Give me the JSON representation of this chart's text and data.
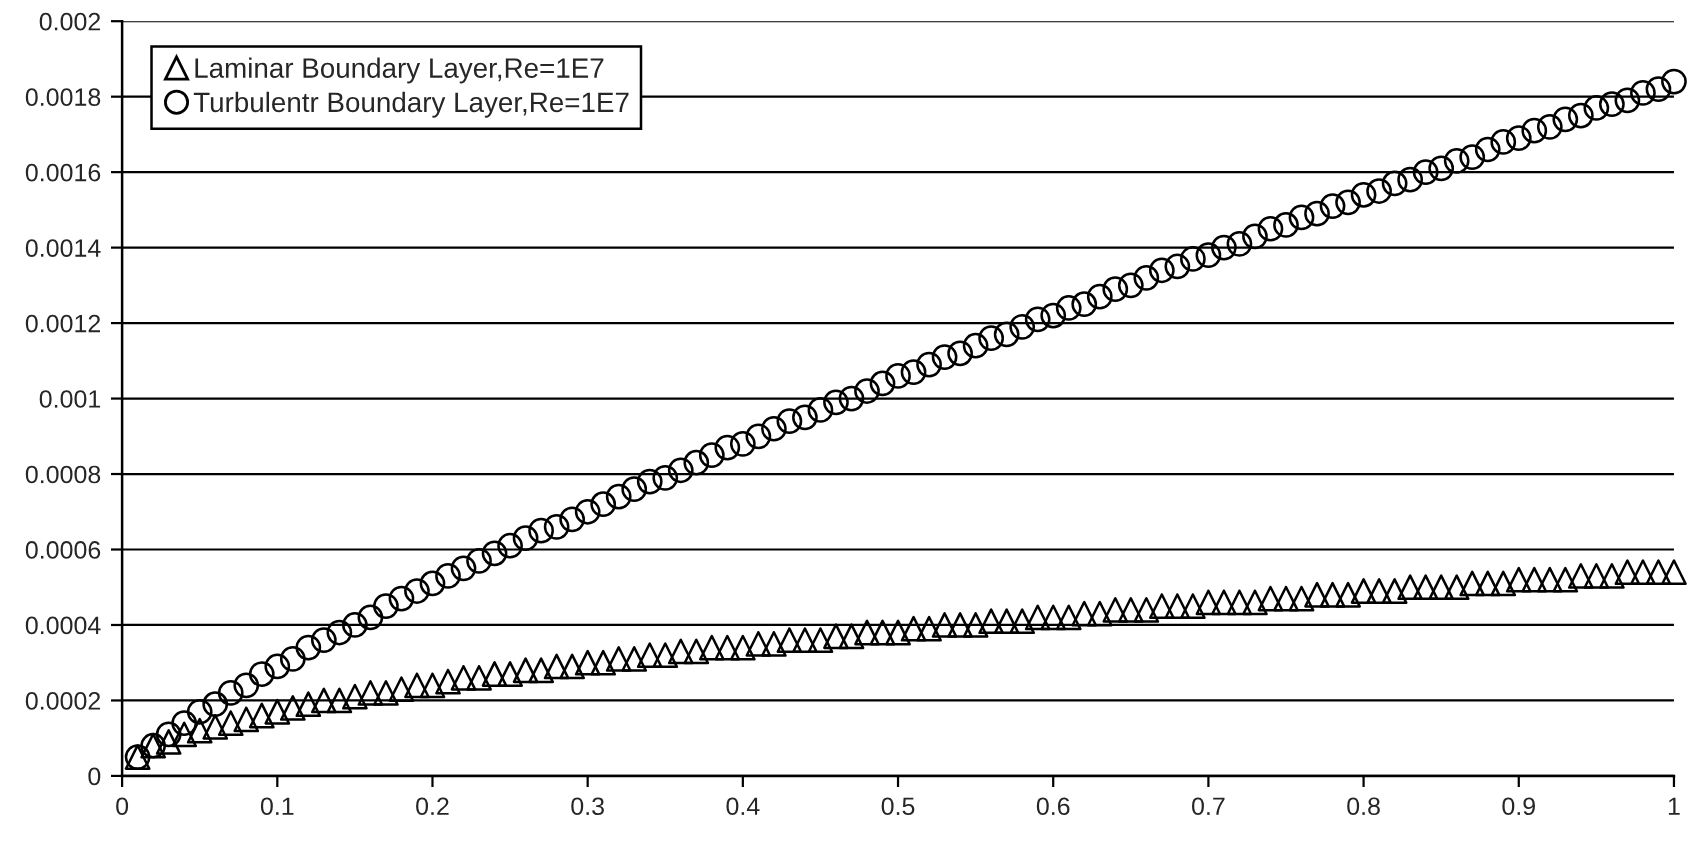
{
  "chart_data": {
    "type": "scatter",
    "x": [
      0.01,
      0.02,
      0.03,
      0.04,
      0.05,
      0.06,
      0.07,
      0.08,
      0.09,
      0.1,
      0.11,
      0.12,
      0.13,
      0.14,
      0.15,
      0.16,
      0.17,
      0.18,
      0.19,
      0.2,
      0.21,
      0.22,
      0.23,
      0.24,
      0.25,
      0.26,
      0.27,
      0.28,
      0.29,
      0.3,
      0.31,
      0.32,
      0.33,
      0.34,
      0.35,
      0.36,
      0.37,
      0.38,
      0.39,
      0.4,
      0.41,
      0.42,
      0.43,
      0.44,
      0.45,
      0.46,
      0.47,
      0.48,
      0.49,
      0.5,
      0.51,
      0.52,
      0.53,
      0.54,
      0.55,
      0.56,
      0.57,
      0.58,
      0.59,
      0.6,
      0.61,
      0.62,
      0.63,
      0.64,
      0.65,
      0.66,
      0.67,
      0.68,
      0.69,
      0.7,
      0.71,
      0.72,
      0.73,
      0.74,
      0.75,
      0.76,
      0.77,
      0.78,
      0.79,
      0.8,
      0.81,
      0.82,
      0.83,
      0.84,
      0.85,
      0.86,
      0.87,
      0.88,
      0.89,
      0.9,
      0.91,
      0.92,
      0.93,
      0.94,
      0.95,
      0.96,
      0.97,
      0.98,
      0.99,
      1.0
    ],
    "series": [
      {
        "name": "Laminar Boundary Layer,Re=1E7",
        "color": "#000000",
        "marker": "triangle",
        "values": [
          5e-05,
          8e-05,
          9e-05,
          0.00011,
          0.00012,
          0.00013,
          0.00014,
          0.00015,
          0.00016,
          0.00017,
          0.00018,
          0.00019,
          0.0002,
          0.0002,
          0.00021,
          0.00022,
          0.00022,
          0.00023,
          0.00024,
          0.00024,
          0.00025,
          0.00026,
          0.00026,
          0.00027,
          0.00027,
          0.00028,
          0.00028,
          0.00029,
          0.00029,
          0.0003,
          0.0003,
          0.00031,
          0.00031,
          0.00032,
          0.00032,
          0.00033,
          0.00033,
          0.00034,
          0.00034,
          0.00034,
          0.00035,
          0.00035,
          0.00036,
          0.00036,
          0.00036,
          0.00037,
          0.00037,
          0.00038,
          0.00038,
          0.00038,
          0.00039,
          0.00039,
          0.0004,
          0.0004,
          0.0004,
          0.00041,
          0.00041,
          0.00041,
          0.00042,
          0.00042,
          0.00042,
          0.00043,
          0.00043,
          0.00044,
          0.00044,
          0.00044,
          0.00045,
          0.00045,
          0.00045,
          0.00046,
          0.00046,
          0.00046,
          0.00046,
          0.00047,
          0.00047,
          0.00047,
          0.00048,
          0.00048,
          0.00048,
          0.00049,
          0.00049,
          0.00049,
          0.0005,
          0.0005,
          0.0005,
          0.0005,
          0.00051,
          0.00051,
          0.00051,
          0.00052,
          0.00052,
          0.00052,
          0.00052,
          0.00053,
          0.00053,
          0.00053,
          0.00054,
          0.00054,
          0.00054,
          0.00054
        ]
      },
      {
        "name": "Turbulentr Boundary Layer,Re=1E7",
        "color": "#000000",
        "marker": "circle",
        "values": [
          5e-05,
          8e-05,
          0.00011,
          0.00014,
          0.00017,
          0.00019,
          0.00022,
          0.00024,
          0.00027,
          0.00029,
          0.00031,
          0.00034,
          0.00036,
          0.00038,
          0.0004,
          0.00042,
          0.00045,
          0.00047,
          0.00049,
          0.00051,
          0.00053,
          0.00055,
          0.00057,
          0.00059,
          0.00061,
          0.00063,
          0.00065,
          0.00066,
          0.00068,
          0.0007,
          0.00072,
          0.00074,
          0.00076,
          0.00078,
          0.00079,
          0.00081,
          0.00083,
          0.00085,
          0.00087,
          0.00088,
          0.0009,
          0.00092,
          0.00094,
          0.00095,
          0.00097,
          0.00099,
          0.001,
          0.00102,
          0.00104,
          0.00106,
          0.00107,
          0.00109,
          0.00111,
          0.00112,
          0.00114,
          0.00116,
          0.00117,
          0.00119,
          0.00121,
          0.00122,
          0.00124,
          0.00125,
          0.00127,
          0.00129,
          0.0013,
          0.00132,
          0.00134,
          0.00135,
          0.00137,
          0.00138,
          0.0014,
          0.00141,
          0.00143,
          0.00145,
          0.00146,
          0.00148,
          0.00149,
          0.00151,
          0.00152,
          0.00154,
          0.00155,
          0.00157,
          0.00158,
          0.0016,
          0.00161,
          0.00163,
          0.00164,
          0.00166,
          0.00168,
          0.00169,
          0.00171,
          0.00172,
          0.00174,
          0.00175,
          0.00177,
          0.00178,
          0.00179,
          0.00181,
          0.00182,
          0.00184
        ]
      }
    ],
    "xlim": [
      0,
      1
    ],
    "xticks": [
      0,
      0.1,
      0.2,
      0.3,
      0.4,
      0.5,
      0.6,
      0.7,
      0.8,
      0.9,
      1
    ],
    "ylim": [
      0,
      0.002
    ],
    "yticks": [
      0,
      0.0002,
      0.0004,
      0.0006,
      0.0008,
      0.001,
      0.0012,
      0.0014,
      0.0016,
      0.0018,
      0.002
    ],
    "grid": "y",
    "legend": "top left"
  }
}
